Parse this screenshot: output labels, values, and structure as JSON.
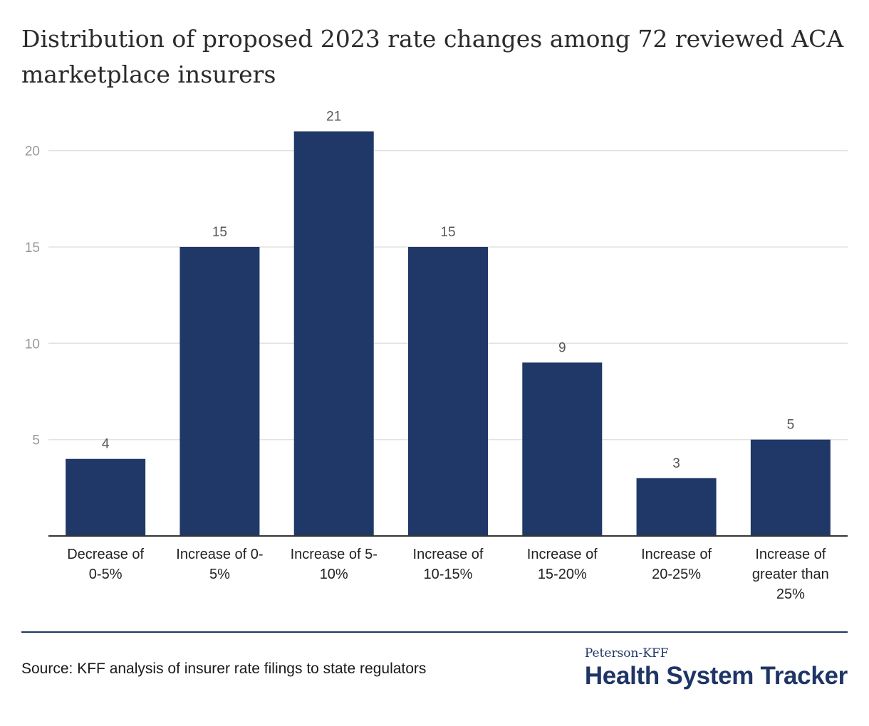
{
  "title": "Distribution of proposed 2023 rate changes among 72 reviewed ACA marketplace insurers",
  "source": "Source: KFF analysis of insurer rate filings to state regulators",
  "brand": {
    "top": "Peterson-KFF",
    "main": "Health System Tracker"
  },
  "colors": {
    "bar": "#203868",
    "grid": "#e2e2e2",
    "axis": "#333333",
    "tick": "#9a9a9a",
    "label": "#222222",
    "value": "#555555"
  },
  "chart_data": {
    "type": "bar",
    "title": "Distribution of proposed 2023 rate changes among 72 reviewed ACA marketplace insurers",
    "xlabel": "",
    "ylabel": "",
    "ylim": [
      0,
      21.5
    ],
    "yticks": [
      5,
      10,
      15,
      20
    ],
    "grid": true,
    "categories": [
      [
        "Decrease of",
        "0-5%"
      ],
      [
        "Increase of 0-",
        "5%"
      ],
      [
        "Increase of 5-",
        "10%"
      ],
      [
        "Increase of",
        "10-15%"
      ],
      [
        "Increase of",
        "15-20%"
      ],
      [
        "Increase of",
        "20-25%"
      ],
      [
        "Increase of",
        "greater than",
        "25%"
      ]
    ],
    "values": [
      4,
      15,
      21,
      15,
      9,
      3,
      5
    ]
  }
}
